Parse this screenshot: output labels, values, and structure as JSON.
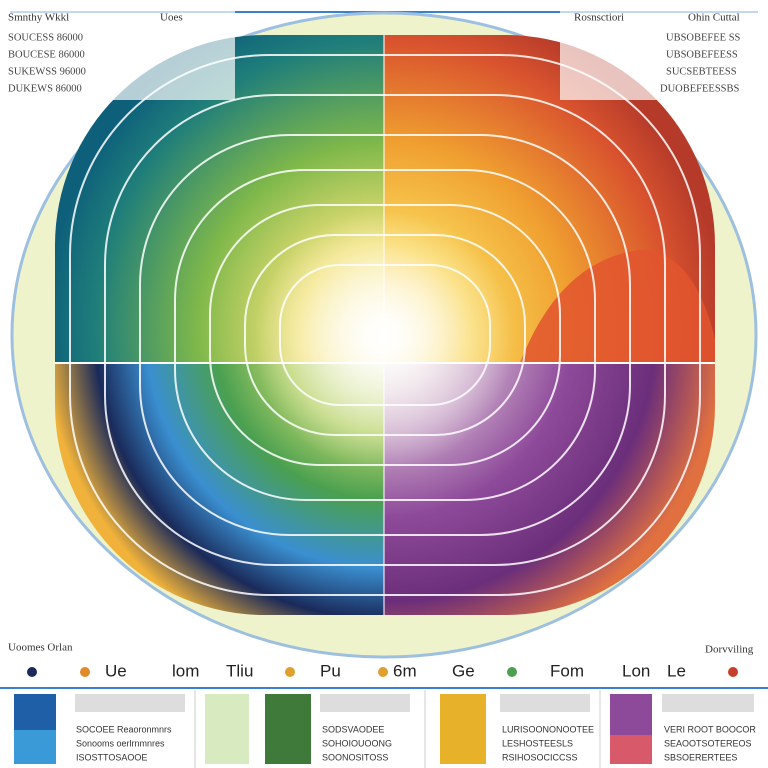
{
  "header": {
    "left_title": "Smnthy Wkkl",
    "center_title": "Uoes",
    "right_title": "Rosnsctiori",
    "far_right_title": "Ohin Cuttal"
  },
  "left_list": [
    "SOUCESS 86000",
    "BOUCESE 86000",
    "SUKEWSS 96000",
    "DUKEWS 86000"
  ],
  "right_list": [
    "UBSOBEFEE SS",
    "UBSOBEFEESS",
    "SUCSEBTEESS",
    "DUOBEFEESSBS"
  ],
  "footer": {
    "left_label": "Uoomes Orlan",
    "right_label": "Dorvviling"
  },
  "legend": [
    "Ue",
    "lom",
    "Tliu",
    "Pu",
    "6m",
    "Ge",
    "Fom",
    "Lon",
    "Le"
  ],
  "panels": [
    {
      "lines": [
        "SOCOEE Reaoronmnrs",
        "Sonooms oerlrnmnres",
        "ISOSTTOSAOOE"
      ]
    },
    {
      "lines": [
        "SODSVAODEE",
        "SOHOIOUOONG",
        "SOONOSITOSS"
      ]
    },
    {
      "lines": [
        "LURISOONONOOTEE",
        "LESHOSTEESLS",
        "RSIHOSOCICCSS"
      ]
    },
    {
      "lines": [
        "VERI ROOT BOOCOR",
        "SEAOOTSOTEREOS",
        "SBSOERERTEES"
      ]
    }
  ]
}
